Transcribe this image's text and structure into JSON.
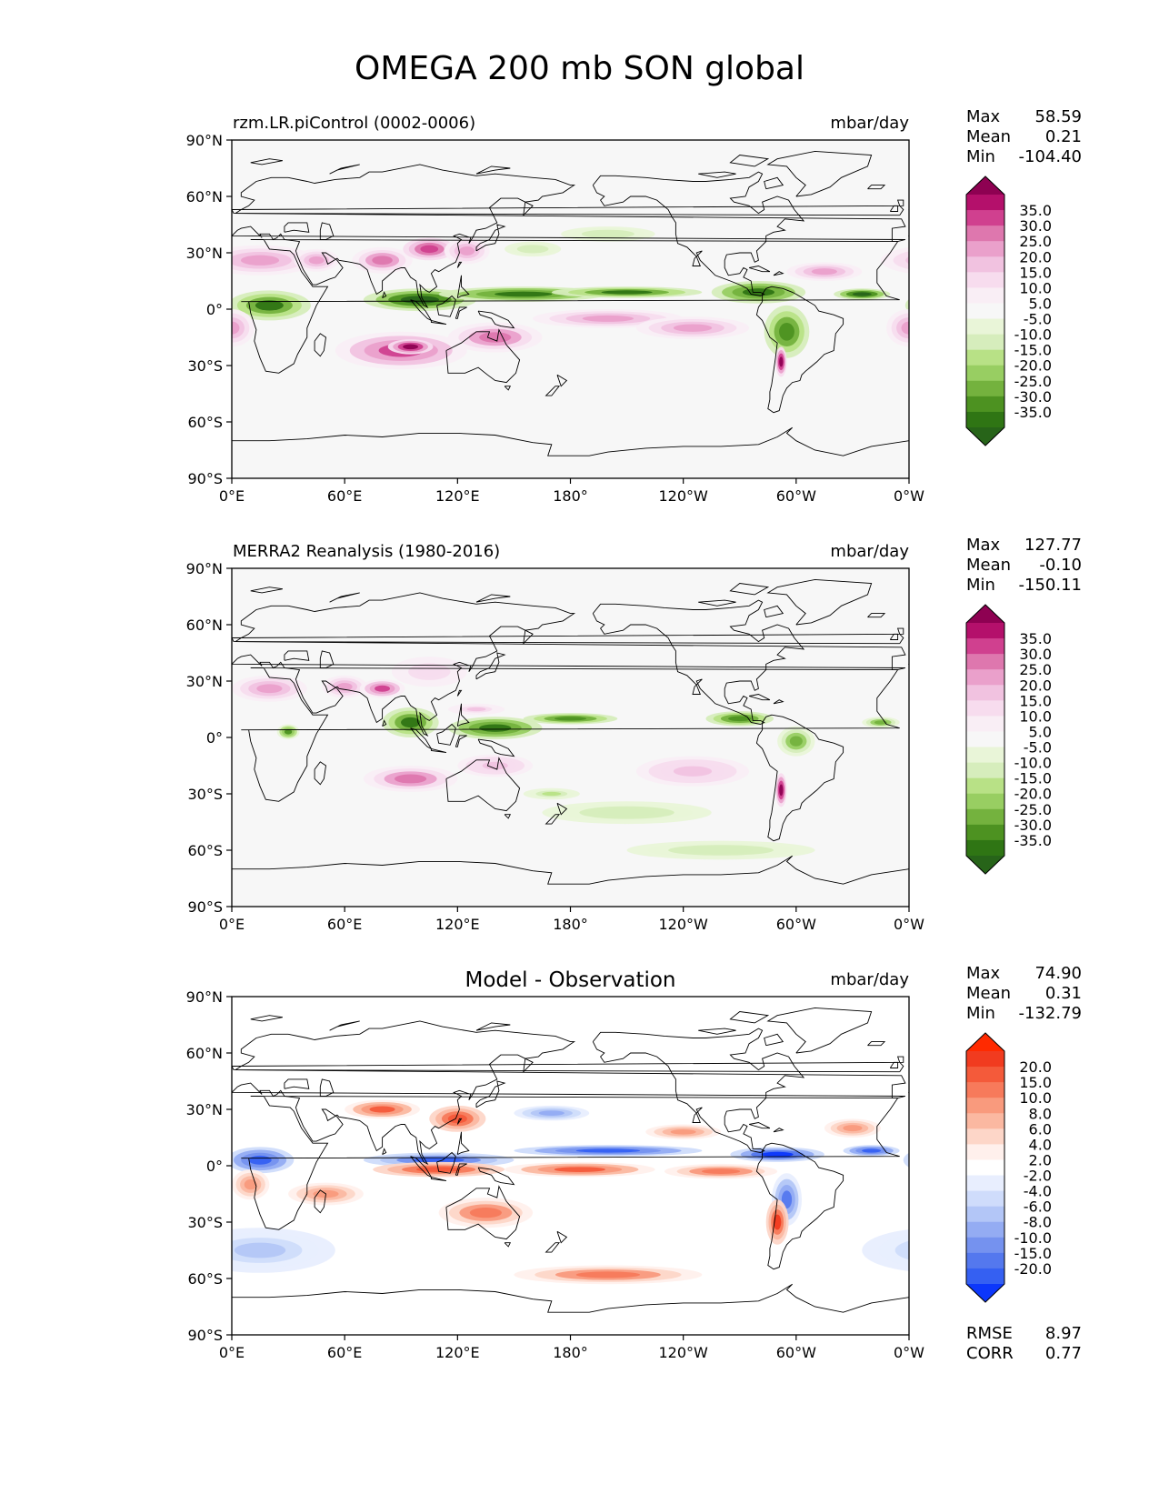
{
  "title": "OMEGA 200 mb SON global",
  "units": "mbar/day",
  "lat_ticks": [
    "90°N",
    "60°N",
    "30°N",
    "0°",
    "30°S",
    "60°S",
    "90°S"
  ],
  "lon_ticks": [
    "0°E",
    "60°E",
    "120°E",
    "180°",
    "120°W",
    "60°W",
    "0°W"
  ],
  "panels": [
    {
      "subtitle": "rzm.LR.piControl (0002-0006)",
      "subtitle_style": "left",
      "stats": {
        "Max": "58.59",
        "Mean": "0.21",
        "Min": "-104.40"
      },
      "colorbar": {
        "labels": [
          "35.0",
          "30.0",
          "25.0",
          "20.0",
          "15.0",
          "10.0",
          "5.0",
          "-5.0",
          "-10.0",
          "-15.0",
          "-20.0",
          "-25.0",
          "-30.0",
          "-35.0"
        ],
        "colors": [
          "#8e0152",
          "#b4106b",
          "#d0408f",
          "#de77ae",
          "#eaa0cb",
          "#f1c2e0",
          "#f7dcee",
          "#f9eef5",
          "#f7f7f7",
          "#e9f5d8",
          "#d6edbc",
          "#b8e186",
          "#98ce62",
          "#74b23e",
          "#4d9221",
          "#2f7514",
          "#276419"
        ]
      }
    },
    {
      "subtitle": "MERRA2 Reanalysis (1980-2016)",
      "subtitle_style": "left",
      "stats": {
        "Max": "127.77",
        "Mean": "-0.10",
        "Min": "-150.11"
      },
      "colorbar": {
        "labels": [
          "35.0",
          "30.0",
          "25.0",
          "20.0",
          "15.0",
          "10.0",
          "5.0",
          "-5.0",
          "-10.0",
          "-15.0",
          "-20.0",
          "-25.0",
          "-30.0",
          "-35.0"
        ],
        "colors": [
          "#8e0152",
          "#b4106b",
          "#d0408f",
          "#de77ae",
          "#eaa0cb",
          "#f1c2e0",
          "#f7dcee",
          "#f9eef5",
          "#f7f7f7",
          "#e9f5d8",
          "#d6edbc",
          "#b8e186",
          "#98ce62",
          "#74b23e",
          "#4d9221",
          "#2f7514",
          "#276419"
        ]
      }
    },
    {
      "subtitle": "Model - Observation",
      "subtitle_style": "center",
      "stats": {
        "Max": "74.90",
        "Mean": "0.31",
        "Min": "-132.79"
      },
      "extra_stats": {
        "RMSE": "8.97",
        "CORR": "0.77"
      },
      "colorbar": {
        "labels": [
          "20.0",
          "15.0",
          "10.0",
          "8.0",
          "6.0",
          "4.0",
          "2.0",
          "-2.0",
          "-4.0",
          "-6.0",
          "-8.0",
          "-10.0",
          "-15.0",
          "-20.0"
        ],
        "colors": [
          "#ff2a00",
          "#f13b1f",
          "#f45a3a",
          "#f77a5b",
          "#f99a7d",
          "#fbb8a1",
          "#fdd6c8",
          "#fff0ec",
          "#ffffff",
          "#e8eefe",
          "#cfdcfb",
          "#b3c6f7",
          "#94acf3",
          "#7592ef",
          "#5478ee",
          "#3560f2",
          "#0c37fb"
        ]
      }
    }
  ]
}
